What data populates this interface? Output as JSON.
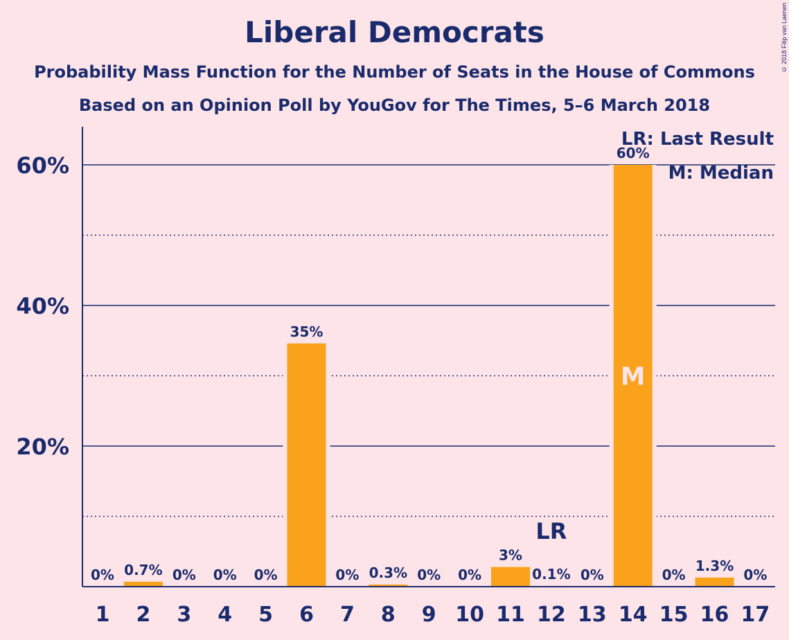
{
  "chart_data": {
    "type": "bar",
    "title": "Liberal Democrats",
    "subtitle": "Probability Mass Function for the Number of Seats in the House of Commons",
    "subtitle2": "Based on an Opinion Poll by YouGov for The Times, 5–6 March 2018",
    "categories": [
      "1",
      "2",
      "3",
      "4",
      "5",
      "6",
      "7",
      "8",
      "9",
      "10",
      "11",
      "12",
      "13",
      "14",
      "15",
      "16",
      "17"
    ],
    "values": [
      0,
      0.7,
      0,
      0,
      0,
      34.6,
      0,
      0.3,
      0,
      0,
      2.8,
      0.1,
      0,
      60,
      0,
      1.3,
      0
    ],
    "value_labels": [
      "0%",
      "0.7%",
      "0%",
      "0%",
      "0%",
      "35%",
      "0%",
      "0.3%",
      "0%",
      "0%",
      "3%",
      "0.1%",
      "0%",
      "60%",
      "0%",
      "1.3%",
      "0%"
    ],
    "ylim": [
      0,
      65
    ],
    "y_ticks": [
      {
        "value": 20,
        "label": "20%"
      },
      {
        "value": 40,
        "label": "40%"
      },
      {
        "value": 60,
        "label": "60%"
      }
    ],
    "minor_grid": [
      10,
      30,
      50
    ],
    "last_result": {
      "category": "12",
      "marker": "LR"
    },
    "median": {
      "category": "14",
      "marker": "M"
    },
    "legend": [
      "LR: Last Result",
      "M: Median"
    ],
    "legend_placement": "top-right",
    "colors": {
      "bar": "#faa21b",
      "text": "#1a2b6d",
      "background": "#fde4e8"
    }
  },
  "copyright": "© 2018 Filip van Laenen"
}
